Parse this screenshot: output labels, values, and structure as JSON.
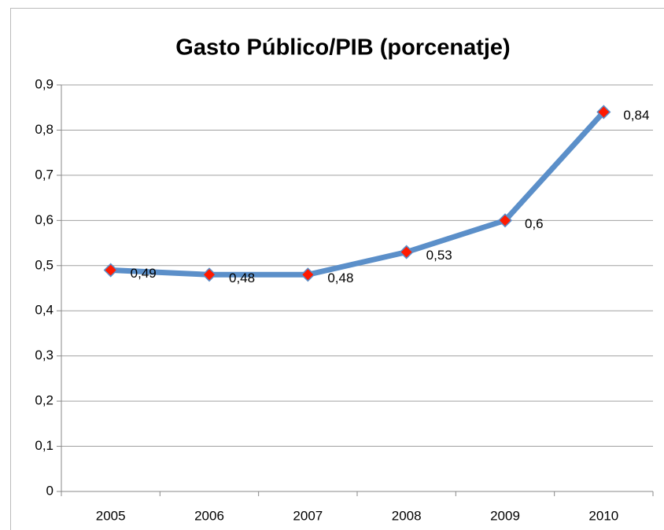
{
  "chart_data": {
    "type": "line",
    "title": "Gasto Público/PIB (porcenatje)",
    "categories": [
      "2005",
      "2006",
      "2007",
      "2008",
      "2009",
      "2010"
    ],
    "series": [
      {
        "name": "Gasto Público/PIB",
        "color": "#5b8fc9",
        "marker_color": "#ff1a00",
        "values": [
          0.49,
          0.48,
          0.48,
          0.53,
          0.6,
          0.84
        ],
        "value_labels": [
          "0,49",
          "0,48",
          "0,48",
          "0,53",
          "0,6",
          "0,84"
        ]
      }
    ],
    "ylim": [
      0,
      0.9
    ],
    "yticks": [
      0,
      {
        "value": 0.1,
        "label": "0,1"
      },
      {
        "value": 0.2,
        "label": "0,2"
      },
      {
        "value": 0.3,
        "label": "0,3"
      },
      {
        "value": 0.4,
        "label": "0,4"
      },
      {
        "value": 0.5,
        "label": "0,5"
      },
      {
        "value": 0.6,
        "label": "0,6"
      },
      {
        "value": 0.7,
        "label": "0,7"
      },
      {
        "value": 0.8,
        "label": "0,8"
      },
      {
        "value": 0.9,
        "label": "0,9"
      }
    ],
    "grid": true
  }
}
